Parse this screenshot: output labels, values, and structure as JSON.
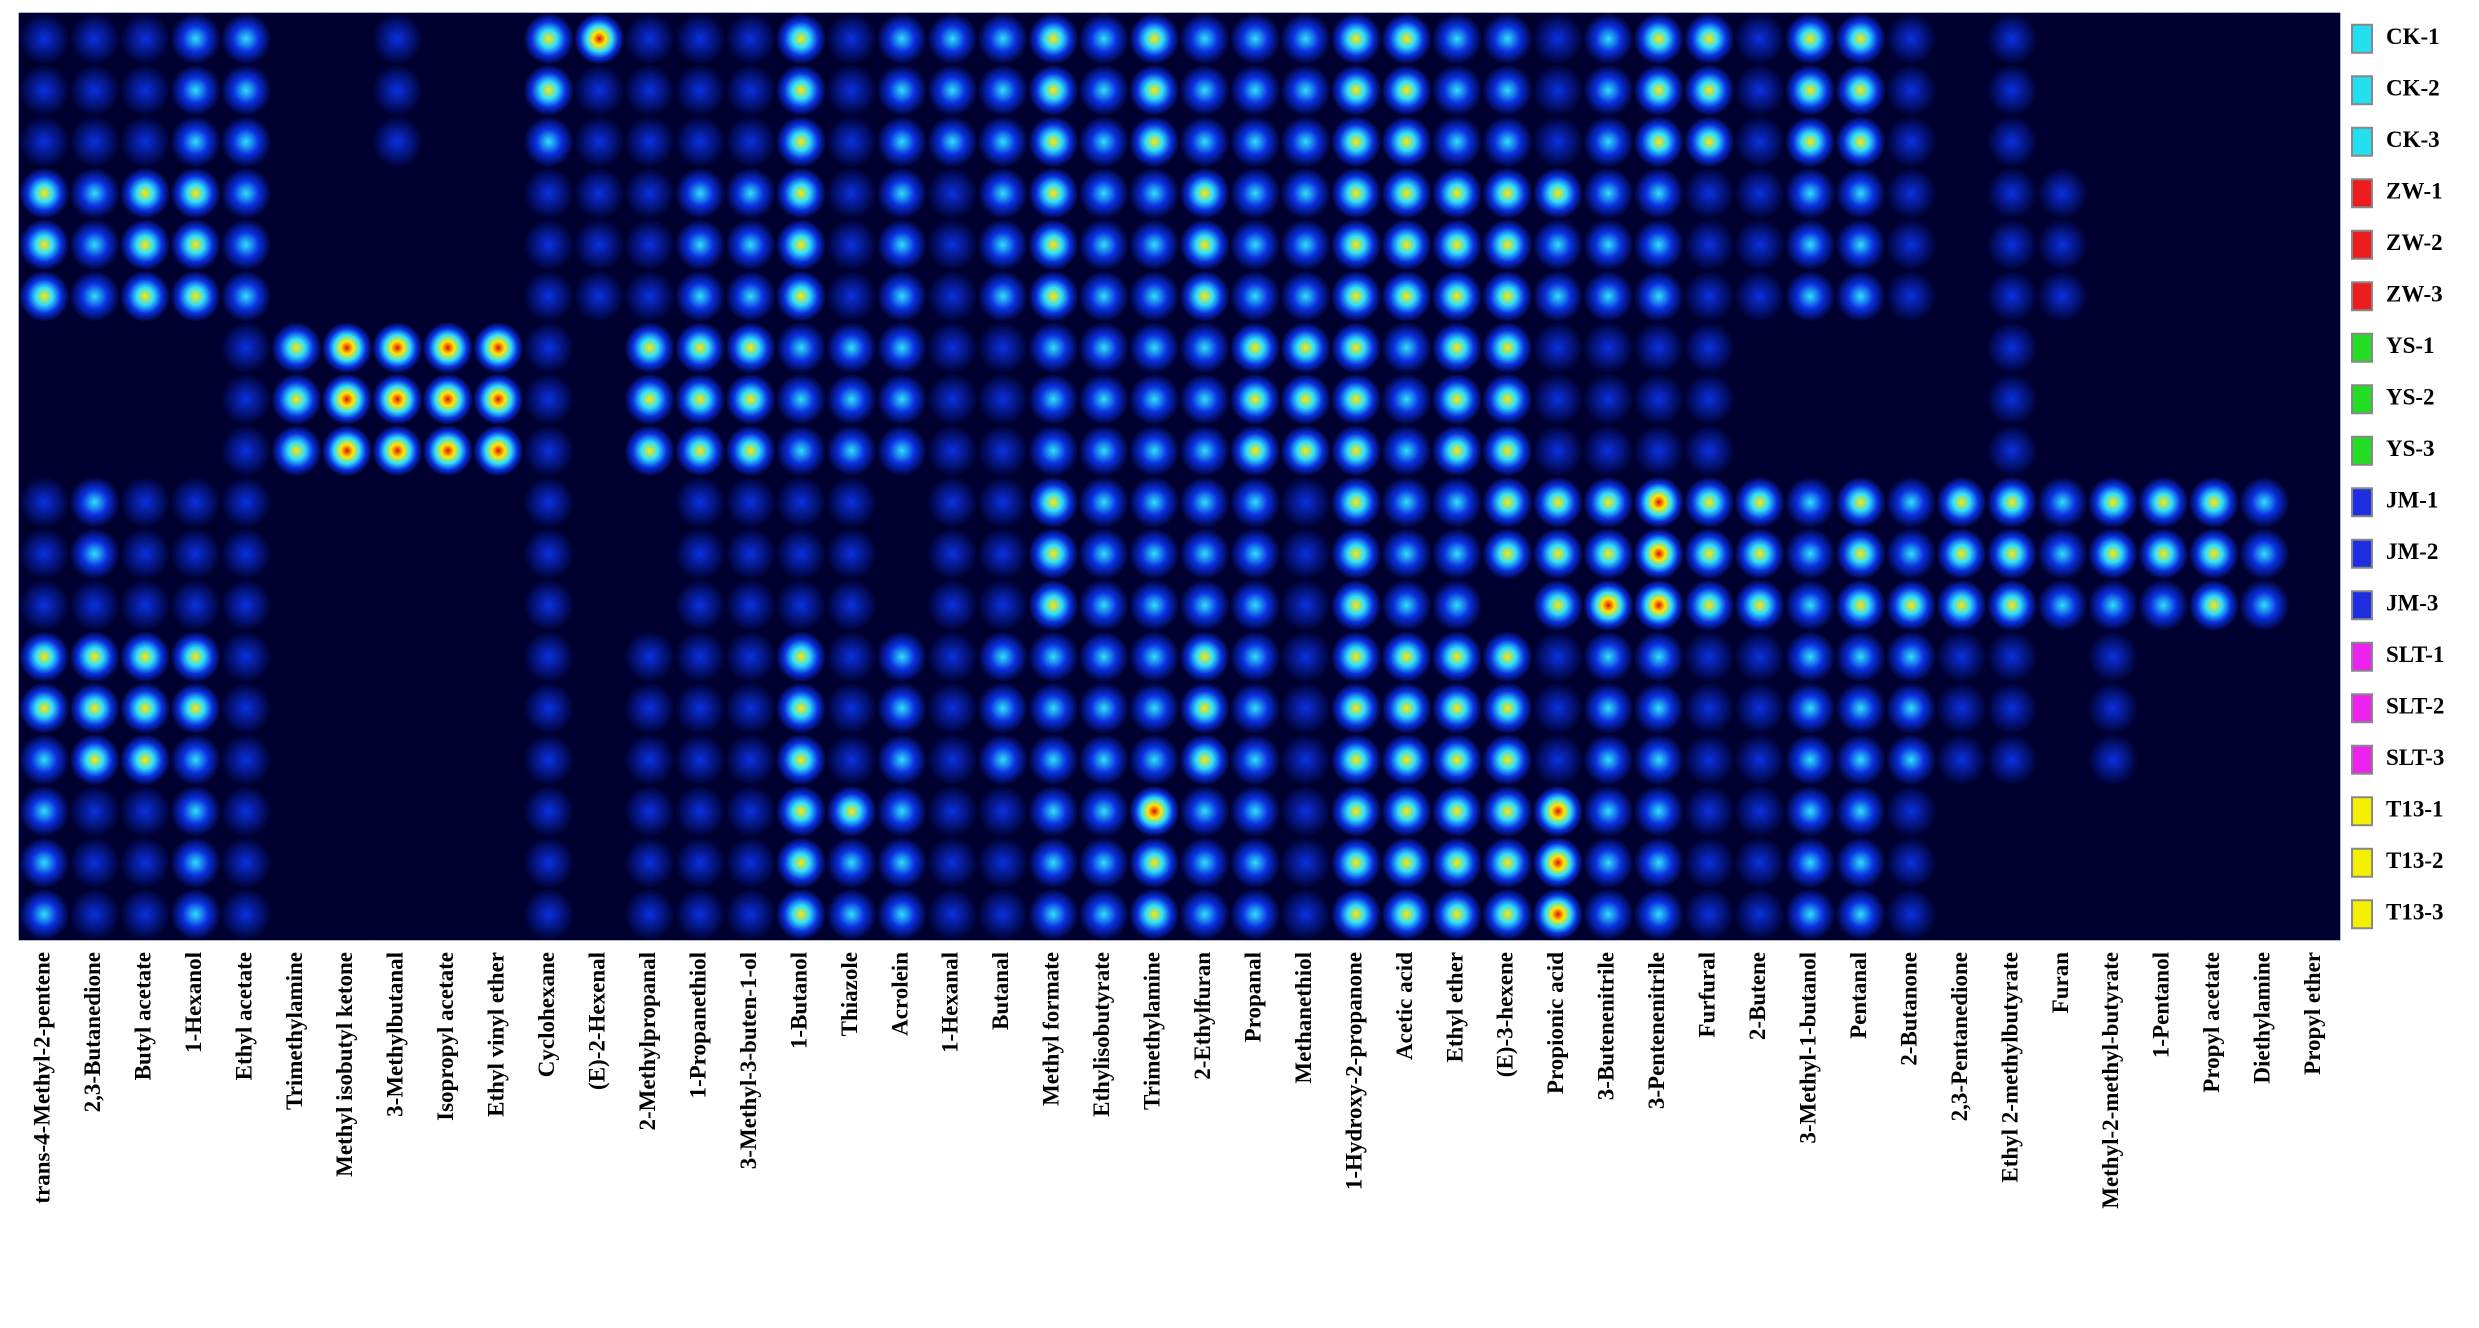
{
  "chart_data": {
    "type": "heatmap",
    "categories": [
      "trans-4-Methyl-2-pentene",
      "2,3-Butanedione",
      "Butyl acetate",
      "1-Hexanol",
      "Ethyl acetate",
      "Trimethylamine",
      "Methyl isobutyl ketone",
      "3-Methylbutanal",
      "Isopropyl acetate",
      "Ethyl vinyl ether",
      "Cyclohexane",
      "(E)-2-Hexenal",
      "2-Methylpropanal",
      "1-Propanethiol",
      "3-Methyl-3-buten-1-ol",
      "1-Butanol",
      "Thiazole",
      "Acrolein",
      "1-Hexanal",
      "Butanal",
      "Methyl formate",
      "Ethylisobutyrate",
      "Trimethylamine",
      "2-Ethylfuran",
      "Propanal",
      "Methanethiol",
      "1-Hydroxy-2-propanone",
      "Acetic acid",
      "Ethyl ether",
      "(E)-3-hexene",
      "Propionic acid",
      "3-Butenenitrile",
      "3-Pentenenitrile",
      "Furfural",
      "2-Butene",
      "3-Methyl-1-butanol",
      "Pentanal",
      "2-Butanone",
      "2,3-Pentanedione",
      "Ethyl 2-methylbutyrate",
      "Furan",
      "Methyl-2-methyl-butyrate",
      "1-Pentanol",
      "Propyl acetate",
      "Diethylamine",
      "Propyl ether"
    ],
    "colorscale": [
      "#000030",
      "#0a30e0",
      "#30e0ff",
      "#ffe600",
      "#e01000"
    ],
    "series": [
      {
        "name": "CK-1",
        "color": "#22e0f0",
        "values": [
          1,
          1,
          1,
          2,
          2,
          0,
          0,
          1,
          0,
          0,
          3,
          4,
          1,
          1,
          1,
          3,
          1,
          2,
          2,
          2,
          3,
          2,
          3,
          2,
          2,
          2,
          3,
          3,
          2,
          2,
          1,
          2,
          3,
          3,
          1,
          3,
          3,
          1,
          0,
          1,
          0,
          0,
          0,
          0,
          0,
          0
        ]
      },
      {
        "name": "CK-2",
        "color": "#22e0f0",
        "values": [
          1,
          1,
          1,
          2,
          2,
          0,
          0,
          1,
          0,
          0,
          3,
          1,
          1,
          1,
          1,
          3,
          1,
          2,
          2,
          2,
          3,
          2,
          3,
          2,
          2,
          2,
          3,
          3,
          2,
          2,
          1,
          2,
          3,
          3,
          1,
          3,
          3,
          1,
          0,
          1,
          0,
          0,
          0,
          0,
          0,
          0
        ]
      },
      {
        "name": "CK-3",
        "color": "#22e0f0",
        "values": [
          1,
          1,
          1,
          2,
          2,
          0,
          0,
          1,
          0,
          0,
          2,
          1,
          1,
          1,
          1,
          3,
          1,
          2,
          2,
          2,
          3,
          2,
          3,
          2,
          2,
          2,
          3,
          3,
          2,
          2,
          1,
          2,
          3,
          3,
          1,
          3,
          3,
          1,
          0,
          1,
          0,
          0,
          0,
          0,
          0,
          0
        ]
      },
      {
        "name": "ZW-1",
        "color": "#ee1c1c",
        "values": [
          3,
          2,
          3,
          3,
          2,
          0,
          0,
          0,
          0,
          0,
          1,
          1,
          1,
          2,
          2,
          3,
          1,
          2,
          1,
          2,
          3,
          2,
          2,
          3,
          2,
          2,
          3,
          3,
          3,
          3,
          3,
          2,
          2,
          1,
          1,
          2,
          2,
          1,
          0,
          1,
          1,
          0,
          0,
          0,
          0,
          0
        ]
      },
      {
        "name": "ZW-2",
        "color": "#ee1c1c",
        "values": [
          3,
          2,
          3,
          3,
          2,
          0,
          0,
          0,
          0,
          0,
          1,
          1,
          1,
          2,
          2,
          3,
          1,
          2,
          1,
          2,
          3,
          2,
          2,
          3,
          2,
          2,
          3,
          3,
          3,
          3,
          2,
          2,
          2,
          1,
          1,
          2,
          2,
          1,
          0,
          1,
          1,
          0,
          0,
          0,
          0,
          0
        ]
      },
      {
        "name": "ZW-3",
        "color": "#ee1c1c",
        "values": [
          3,
          2,
          3,
          3,
          2,
          0,
          0,
          0,
          0,
          0,
          1,
          1,
          1,
          2,
          2,
          3,
          1,
          2,
          1,
          2,
          3,
          2,
          2,
          3,
          2,
          2,
          3,
          3,
          3,
          3,
          2,
          2,
          2,
          1,
          1,
          2,
          2,
          1,
          0,
          1,
          1,
          0,
          0,
          0,
          0,
          0
        ]
      },
      {
        "name": "YS-1",
        "color": "#22dd22",
        "values": [
          0,
          0,
          0,
          0,
          1,
          3,
          4,
          4,
          4,
          4,
          1,
          0,
          3,
          3,
          3,
          2,
          2,
          2,
          1,
          1,
          2,
          2,
          2,
          2,
          3,
          3,
          3,
          2,
          3,
          3,
          1,
          1,
          1,
          1,
          0,
          0,
          0,
          0,
          0,
          1,
          0,
          0,
          0,
          0,
          0,
          0
        ]
      },
      {
        "name": "YS-2",
        "color": "#22dd22",
        "values": [
          0,
          0,
          0,
          0,
          1,
          3,
          4,
          4,
          4,
          4,
          1,
          0,
          3,
          3,
          3,
          2,
          2,
          2,
          1,
          1,
          2,
          2,
          2,
          2,
          3,
          3,
          3,
          2,
          3,
          3,
          1,
          1,
          1,
          1,
          0,
          0,
          0,
          0,
          0,
          1,
          0,
          0,
          0,
          0,
          0,
          0
        ]
      },
      {
        "name": "YS-3",
        "color": "#22dd22",
        "values": [
          0,
          0,
          0,
          0,
          1,
          3,
          4,
          4,
          4,
          4,
          1,
          0,
          3,
          3,
          3,
          2,
          2,
          2,
          1,
          1,
          2,
          2,
          2,
          2,
          3,
          3,
          3,
          2,
          3,
          3,
          1,
          1,
          1,
          1,
          0,
          0,
          0,
          0,
          0,
          1,
          0,
          0,
          0,
          0,
          0,
          0
        ]
      },
      {
        "name": "JM-1",
        "color": "#1c2ee0",
        "values": [
          1,
          2,
          1,
          1,
          1,
          0,
          0,
          0,
          0,
          0,
          1,
          0,
          0,
          1,
          1,
          1,
          1,
          0,
          1,
          1,
          3,
          2,
          2,
          2,
          2,
          1,
          3,
          2,
          2,
          3,
          3,
          3,
          4,
          3,
          3,
          2,
          3,
          2,
          3,
          3,
          2,
          3,
          3,
          3,
          2,
          0
        ]
      },
      {
        "name": "JM-2",
        "color": "#1c2ee0",
        "values": [
          1,
          2,
          1,
          1,
          1,
          0,
          0,
          0,
          0,
          0,
          1,
          0,
          0,
          1,
          1,
          1,
          1,
          0,
          1,
          1,
          3,
          2,
          2,
          2,
          2,
          1,
          3,
          2,
          2,
          3,
          3,
          3,
          4,
          3,
          3,
          2,
          3,
          2,
          3,
          3,
          2,
          3,
          3,
          3,
          2,
          0
        ]
      },
      {
        "name": "JM-3",
        "color": "#1c2ee0",
        "values": [
          1,
          1,
          1,
          1,
          1,
          0,
          0,
          0,
          0,
          0,
          1,
          0,
          0,
          1,
          1,
          1,
          1,
          0,
          1,
          1,
          3,
          2,
          2,
          2,
          2,
          1,
          3,
          2,
          2,
          0,
          3,
          4,
          4,
          3,
          3,
          2,
          3,
          3,
          3,
          3,
          2,
          2,
          2,
          3,
          2,
          0
        ]
      },
      {
        "name": "SLT-1",
        "color": "#ee22ee",
        "values": [
          3,
          3,
          3,
          3,
          1,
          0,
          0,
          0,
          0,
          0,
          1,
          0,
          1,
          1,
          1,
          3,
          1,
          2,
          1,
          2,
          2,
          2,
          2,
          3,
          2,
          1,
          3,
          3,
          3,
          3,
          1,
          2,
          2,
          1,
          1,
          2,
          2,
          2,
          1,
          1,
          0,
          1,
          0,
          0,
          0,
          0
        ]
      },
      {
        "name": "SLT-2",
        "color": "#ee22ee",
        "values": [
          3,
          3,
          3,
          3,
          1,
          0,
          0,
          0,
          0,
          0,
          1,
          0,
          1,
          1,
          1,
          3,
          1,
          2,
          1,
          2,
          2,
          2,
          2,
          3,
          2,
          1,
          3,
          3,
          3,
          3,
          1,
          2,
          2,
          1,
          1,
          2,
          2,
          2,
          1,
          1,
          0,
          1,
          0,
          0,
          0,
          0
        ]
      },
      {
        "name": "SLT-3",
        "color": "#ee22ee",
        "values": [
          2,
          3,
          3,
          2,
          1,
          0,
          0,
          0,
          0,
          0,
          1,
          0,
          1,
          1,
          1,
          3,
          1,
          2,
          1,
          2,
          2,
          2,
          2,
          3,
          2,
          1,
          3,
          3,
          3,
          3,
          1,
          2,
          2,
          1,
          1,
          2,
          2,
          2,
          1,
          1,
          0,
          1,
          0,
          0,
          0,
          0
        ]
      },
      {
        "name": "T13-1",
        "color": "#f5f000",
        "values": [
          2,
          1,
          1,
          2,
          1,
          0,
          0,
          0,
          0,
          0,
          1,
          0,
          1,
          1,
          1,
          3,
          3,
          2,
          1,
          1,
          2,
          2,
          4,
          2,
          2,
          1,
          3,
          3,
          3,
          3,
          4,
          2,
          2,
          1,
          1,
          2,
          2,
          1,
          0,
          0,
          0,
          0,
          0,
          0,
          0,
          0
        ]
      },
      {
        "name": "T13-2",
        "color": "#f5f000",
        "values": [
          2,
          1,
          1,
          2,
          1,
          0,
          0,
          0,
          0,
          0,
          1,
          0,
          1,
          1,
          1,
          3,
          2,
          2,
          1,
          1,
          2,
          2,
          3,
          2,
          2,
          1,
          3,
          3,
          3,
          3,
          4,
          2,
          2,
          1,
          1,
          2,
          2,
          1,
          0,
          0,
          0,
          0,
          0,
          0,
          0,
          0
        ]
      },
      {
        "name": "T13-3",
        "color": "#f5f000",
        "values": [
          2,
          1,
          1,
          2,
          1,
          0,
          0,
          0,
          0,
          0,
          1,
          0,
          1,
          1,
          1,
          3,
          2,
          2,
          1,
          1,
          2,
          2,
          3,
          2,
          2,
          1,
          3,
          3,
          3,
          3,
          4,
          2,
          2,
          1,
          1,
          2,
          2,
          1,
          0,
          0,
          0,
          0,
          0,
          0,
          0,
          0
        ]
      }
    ]
  }
}
